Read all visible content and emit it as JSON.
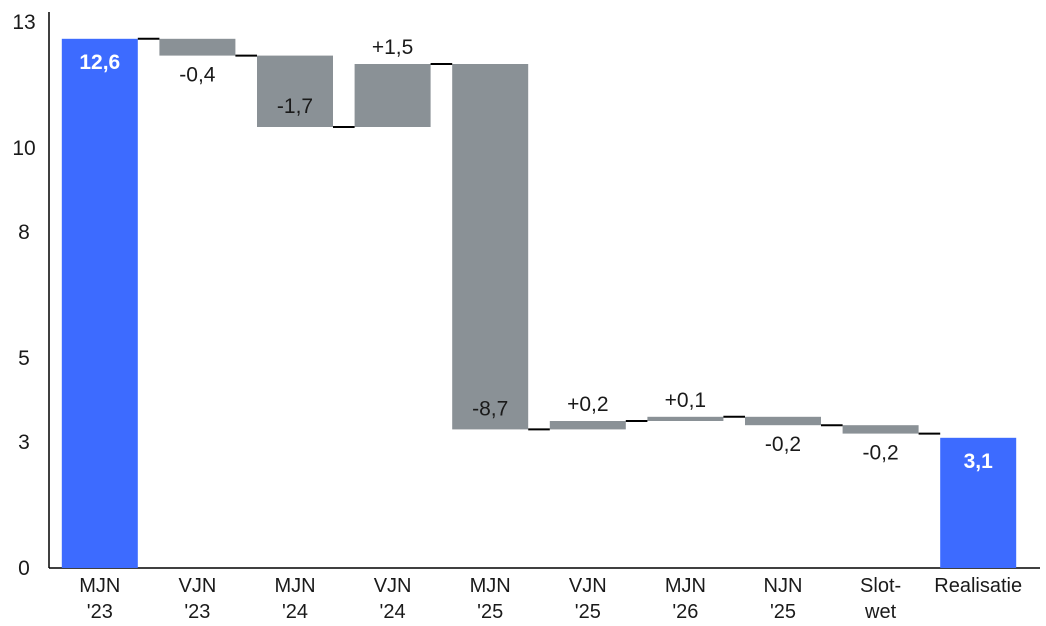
{
  "chart_data": {
    "type": "bar",
    "subtype": "waterfall",
    "categories": [
      [
        "MJN",
        "'23"
      ],
      [
        "VJN",
        "'23"
      ],
      [
        "MJN",
        "'24"
      ],
      [
        "VJN",
        "'24"
      ],
      [
        "MJN",
        "'25"
      ],
      [
        "VJN",
        "'25"
      ],
      [
        "MJN",
        "'26"
      ],
      [
        "NJN",
        "'25"
      ],
      [
        "Slot-",
        "wet"
      ],
      [
        "Realisatie"
      ]
    ],
    "values": [
      12.6,
      -0.4,
      -1.7,
      1.5,
      -8.7,
      0.2,
      0.1,
      -0.2,
      -0.2,
      3.1
    ],
    "is_total": [
      true,
      false,
      false,
      false,
      false,
      false,
      false,
      false,
      false,
      true
    ],
    "data_labels": [
      "12,6",
      "-0,4",
      "-1,7",
      "+1,5",
      "-8,7",
      "+0,2",
      "+0,1",
      "-0,2",
      "-0,2",
      "3,1"
    ],
    "y_ticks": [
      0,
      3,
      5,
      8,
      10,
      13
    ],
    "ylim": [
      0,
      13
    ],
    "title": "",
    "xlabel": "",
    "ylabel": "",
    "grid": false,
    "legend": "none",
    "colors": {
      "total": "#3D6BFF",
      "change": "#8A9196",
      "connector": "#000000",
      "axis": "#000000"
    }
  }
}
